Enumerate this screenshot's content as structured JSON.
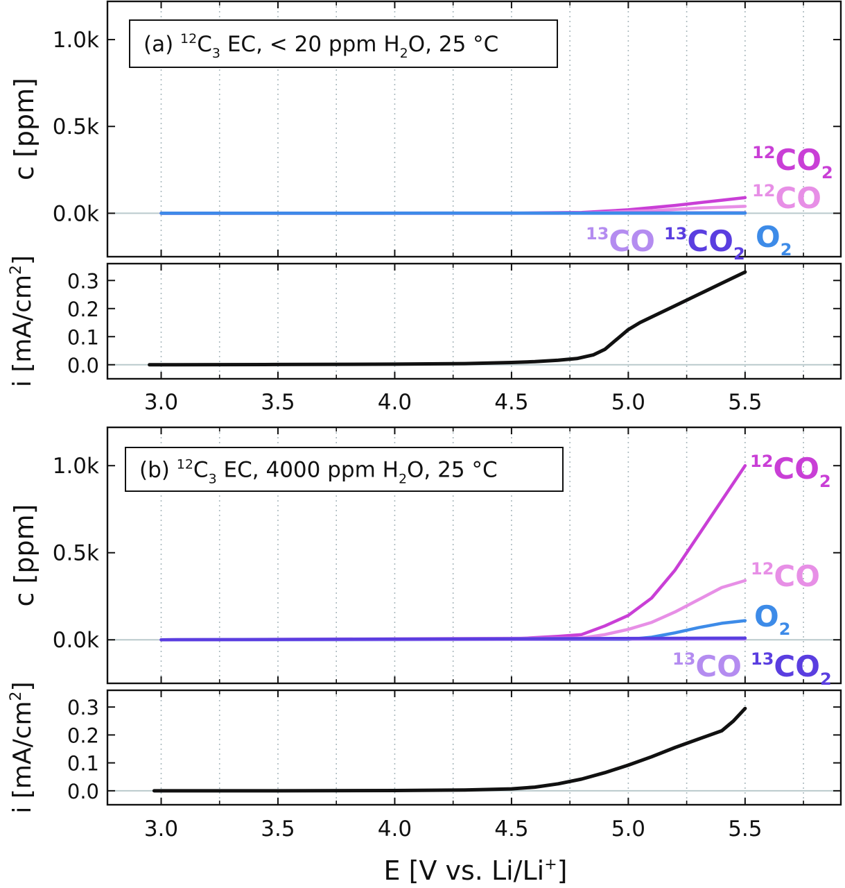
{
  "figure": {
    "xlabel": "E [V vs. Li/Li",
    "xlabel_sup": "+",
    "xlabel_close": "]",
    "x_ticks": [
      3.0,
      3.5,
      4.0,
      4.5,
      5.0,
      5.5
    ],
    "x_tick_labels": [
      "3.0",
      "3.5",
      "4.0",
      "4.5",
      "5.0",
      "5.5"
    ],
    "x_minor": [
      2.75,
      3.25,
      3.75,
      4.25,
      4.75,
      5.25,
      5.75
    ],
    "xlim": [
      2.77,
      5.91
    ]
  },
  "chart_data": [
    {
      "type": "line",
      "panel": "a",
      "title_parts": [
        "(a) ",
        "12",
        "C",
        "3",
        " EC, < 20 ppm H",
        "2",
        "O, 25 °C"
      ],
      "gas": {
        "ylabel": "c [ppm]",
        "ylim": [
          -0.25,
          1.22
        ],
        "y_ticks": [
          0.0,
          0.5,
          1.0
        ],
        "y_tick_labels": [
          "0.0k",
          "0.5k",
          "1.0k"
        ],
        "series": [
          {
            "name": "12CO2",
            "color": "#c93fd6",
            "x": [
              3.0,
              4.5,
              4.8,
              5.0,
              5.2,
              5.4,
              5.5
            ],
            "values": [
              0,
              0,
              0.005,
              0.02,
              0.045,
              0.075,
              0.09
            ]
          },
          {
            "name": "12CO",
            "color": "#e78fe6",
            "x": [
              3.0,
              4.7,
              4.9,
              5.1,
              5.3,
              5.5
            ],
            "values": [
              0,
              0,
              0.005,
              0.015,
              0.03,
              0.04
            ]
          },
          {
            "name": "13CO",
            "color": "#b48cf0",
            "x": [
              3.0,
              5.5
            ],
            "values": [
              0,
              0
            ]
          },
          {
            "name": "13CO2",
            "color": "#5a3ee0",
            "x": [
              3.0,
              5.5
            ],
            "values": [
              0,
              0.002
            ]
          },
          {
            "name": "O2",
            "color": "#3d8be8",
            "x": [
              3.0,
              5.5
            ],
            "values": [
              0,
              0.001
            ]
          }
        ]
      },
      "current": {
        "ylabel": "i [mA/cm",
        "ylabel_sup": "2",
        "ylabel_close": "]",
        "ylim": [
          -0.05,
          0.36
        ],
        "y_ticks": [
          0.0,
          0.1,
          0.2,
          0.3
        ],
        "y_tick_labels": [
          "0.0",
          "0.1",
          "0.2",
          "0.3"
        ],
        "series": [
          {
            "name": "current",
            "color": "#111111",
            "x": [
              2.95,
              3.5,
              4.0,
              4.3,
              4.5,
              4.6,
              4.7,
              4.78,
              4.85,
              4.9,
              4.95,
              5.0,
              5.05,
              5.1,
              5.2,
              5.3,
              5.4,
              5.5
            ],
            "values": [
              0,
              0.001,
              0.002,
              0.004,
              0.008,
              0.011,
              0.016,
              0.022,
              0.035,
              0.055,
              0.09,
              0.125,
              0.15,
              0.17,
              0.21,
              0.25,
              0.29,
              0.33
            ]
          }
        ]
      },
      "labels": [
        {
          "sup": "12",
          "main": "CO",
          "sub": "2",
          "color": "#c93fd6"
        },
        {
          "sup": "12",
          "main": "CO",
          "sub": "",
          "color": "#e78fe6"
        },
        {
          "sup": "13",
          "main": "CO",
          "sub": "",
          "color": "#b48cf0"
        },
        {
          "sup": "13",
          "main": "CO",
          "sub": "2",
          "color": "#5a3ee0"
        },
        {
          "sup": "",
          "main": "O",
          "sub": "2",
          "color": "#3d8be8"
        }
      ]
    },
    {
      "type": "line",
      "panel": "b",
      "title_parts": [
        "(b) ",
        "12",
        "C",
        "3",
        " EC, 4000 ppm H",
        "2",
        "O, 25 °C"
      ],
      "gas": {
        "ylabel": "c [ppm]",
        "ylim": [
          -0.25,
          1.22
        ],
        "y_ticks": [
          0.0,
          0.5,
          1.0
        ],
        "y_tick_labels": [
          "0.0k",
          "0.5k",
          "1.0k"
        ],
        "series": [
          {
            "name": "12CO2",
            "color": "#c93fd6",
            "x": [
              3.0,
              4.5,
              4.7,
              4.8,
              4.9,
              5.0,
              5.1,
              5.2,
              5.3,
              5.4,
              5.5
            ],
            "values": [
              0,
              0.005,
              0.02,
              0.03,
              0.08,
              0.14,
              0.24,
              0.4,
              0.6,
              0.8,
              1.0
            ]
          },
          {
            "name": "12CO",
            "color": "#e78fe6",
            "x": [
              3.0,
              4.8,
              4.9,
              5.0,
              5.1,
              5.2,
              5.3,
              5.4,
              5.5
            ],
            "values": [
              0,
              0.01,
              0.03,
              0.06,
              0.1,
              0.16,
              0.23,
              0.3,
              0.34
            ]
          },
          {
            "name": "O2",
            "color": "#3d8be8",
            "x": [
              3.0,
              5.0,
              5.1,
              5.2,
              5.3,
              5.4,
              5.5
            ],
            "values": [
              0,
              0.002,
              0.015,
              0.04,
              0.07,
              0.095,
              0.11
            ]
          },
          {
            "name": "13CO",
            "color": "#b48cf0",
            "x": [
              3.0,
              5.5
            ],
            "values": [
              0,
              0.004
            ]
          },
          {
            "name": "13CO2",
            "color": "#5a3ee0",
            "x": [
              3.0,
              5.5
            ],
            "values": [
              0,
              0.01
            ]
          }
        ]
      },
      "current": {
        "ylabel": "i [mA/cm",
        "ylabel_sup": "2",
        "ylabel_close": "]",
        "ylim": [
          -0.05,
          0.36
        ],
        "y_ticks": [
          0.0,
          0.1,
          0.2,
          0.3
        ],
        "y_tick_labels": [
          "0.0",
          "0.1",
          "0.2",
          "0.3"
        ],
        "series": [
          {
            "name": "current",
            "color": "#111111",
            "x": [
              2.97,
              3.5,
              4.0,
              4.3,
              4.5,
              4.6,
              4.7,
              4.8,
              4.9,
              5.0,
              5.1,
              5.2,
              5.3,
              5.4,
              5.45,
              5.5
            ],
            "values": [
              0,
              0,
              0.001,
              0.003,
              0.007,
              0.013,
              0.025,
              0.042,
              0.065,
              0.092,
              0.122,
              0.155,
              0.185,
              0.215,
              0.25,
              0.295
            ]
          }
        ]
      },
      "labels": [
        {
          "sup": "12",
          "main": "CO",
          "sub": "2",
          "color": "#c93fd6"
        },
        {
          "sup": "12",
          "main": "CO",
          "sub": "",
          "color": "#e78fe6"
        },
        {
          "sup": "",
          "main": "O",
          "sub": "2",
          "color": "#3d8be8"
        },
        {
          "sup": "13",
          "main": "CO",
          "sub": "",
          "color": "#b48cf0"
        },
        {
          "sup": "13",
          "main": "CO",
          "sub": "2",
          "color": "#5a3ee0"
        }
      ]
    }
  ]
}
